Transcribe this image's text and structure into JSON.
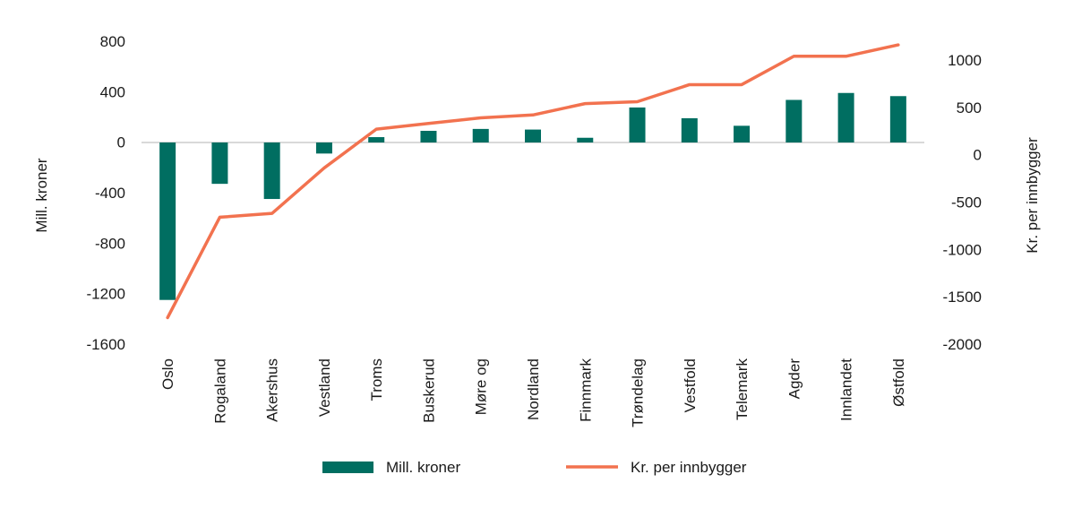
{
  "chart_data": {
    "type": "bar",
    "categories": [
      "Oslo",
      "Rogaland",
      "Akershus",
      "Vestland",
      "Troms",
      "Buskerud",
      "Møre og",
      "Nordland",
      "Finnmark",
      "Trøndelag",
      "Vestfold",
      "Telemark",
      "Agder",
      "Innlandet",
      "Østfold"
    ],
    "series": [
      {
        "name": "Mill. kroner",
        "kind": "bar",
        "axis": "left",
        "color": "#006e61",
        "values": [
          -1250,
          -330,
          -450,
          -90,
          40,
          90,
          105,
          100,
          35,
          275,
          190,
          130,
          335,
          390,
          365
        ]
      },
      {
        "name": "Kr. per innbygger",
        "kind": "line",
        "axis": "right",
        "color": "#f2724f",
        "values": [
          -1720,
          -660,
          -620,
          -140,
          270,
          330,
          390,
          420,
          540,
          560,
          740,
          740,
          1040,
          1040,
          1160
        ]
      }
    ],
    "ylabel": "Mill. kroner",
    "y2label": "Kr. per innbygger",
    "ylim": [
      -1600,
      800
    ],
    "yticks": [
      "800",
      "400",
      "0",
      "-400",
      "-800",
      "-1200",
      "-1600"
    ],
    "y2lim": [
      -2000,
      1000
    ],
    "y2ticks": [
      "1000",
      "500",
      "0",
      "-500",
      "-1000",
      "-1500",
      "-2000"
    ],
    "grid": false,
    "legend_position": "bottom"
  }
}
